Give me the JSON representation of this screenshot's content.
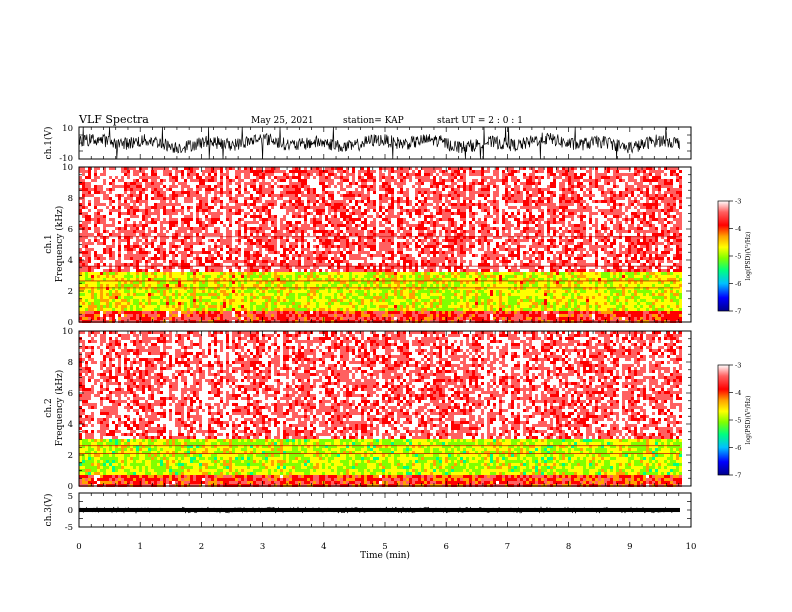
{
  "header": {
    "title": "VLF Spectra",
    "date": "May 25, 2021",
    "station": "station= KAP",
    "start_ut": "start  UT =   2 : 0  : 1"
  },
  "colors": {
    "spectrogram_scale": [
      "#00008b",
      "#0000ff",
      "#00c0ff",
      "#00ff80",
      "#80ff00",
      "#ffff00",
      "#ffa000",
      "#ff0000",
      "#ff6060",
      "#ffffff"
    ],
    "waveform": "#000000",
    "background": "#ffffff"
  },
  "chart_data": [
    {
      "id": "ch1_waveform",
      "type": "line",
      "ylabel": "ch.1(V)",
      "ylim": [
        -10,
        10
      ],
      "y_ticks": [
        "10",
        "-10"
      ],
      "xlim": [
        0,
        10
      ],
      "description_values": {
        "baseline_v": 0,
        "typical_amplitude_v": 4,
        "peak_amplitude_v": 10
      }
    },
    {
      "id": "ch1_spectrogram",
      "type": "heatmap",
      "ylabel": "ch.1\nFrequency  (kHz)",
      "ylim": [
        0,
        10
      ],
      "y_ticks": [
        "0",
        "2",
        "4",
        "6",
        "8",
        "10"
      ],
      "xlim": [
        0,
        10
      ],
      "data_end_min": 9.82,
      "colorbar": {
        "label": "log(PSD)(V²/Hz)",
        "range": [
          -7,
          -3
        ],
        "ticks": [
          "-3",
          "-4",
          "-5",
          "-6",
          "-7"
        ]
      },
      "bands_khz": [
        {
          "from": 0,
          "to": 0.8,
          "level": -3.9,
          "note": "mixed red/yellow low band"
        },
        {
          "from": 0.8,
          "to": 3.3,
          "level": -4.9,
          "note": "green/yellow band"
        },
        {
          "from": 3.3,
          "to": 10,
          "level": -3.6,
          "note": "red/white high band"
        }
      ],
      "lines_khz": [
        2.2,
        2.65,
        5.5,
        3.6
      ]
    },
    {
      "id": "ch2_spectrogram",
      "type": "heatmap",
      "ylabel": "ch.2\nFrequency  (kHz)",
      "ylim": [
        0,
        10
      ],
      "y_ticks": [
        "0",
        "2",
        "4",
        "6",
        "8",
        "10"
      ],
      "xlim": [
        0,
        10
      ],
      "data_end_min": 9.82,
      "colorbar": {
        "label": "log(PSD)(V²/Hz)",
        "range": [
          -7,
          -3
        ],
        "ticks": [
          "-3",
          "-4",
          "-5",
          "-6",
          "-7"
        ]
      },
      "bands_khz": [
        {
          "from": 0,
          "to": 0.8,
          "level": -4.0,
          "note": "mixed red/yellow low band"
        },
        {
          "from": 0.8,
          "to": 3.0,
          "level": -5.0,
          "note": "green/yellow band"
        },
        {
          "from": 3.0,
          "to": 10,
          "level": -3.55,
          "note": "red/white high band"
        }
      ],
      "lines_khz": [
        2.1,
        2.6
      ]
    },
    {
      "id": "ch3_waveform",
      "type": "line",
      "ylabel": "ch.3(V)",
      "ylim": [
        -5,
        5
      ],
      "y_ticks": [
        "5",
        "0",
        "-5"
      ],
      "xlim": [
        0,
        10
      ],
      "xlabel": "Time  (min)",
      "x_ticks": [
        "0",
        "1",
        "2",
        "3",
        "4",
        "5",
        "6",
        "7",
        "8",
        "9",
        "10"
      ],
      "description_values": {
        "baseline_v": 0,
        "band_amplitude_v": 0.6
      }
    }
  ]
}
